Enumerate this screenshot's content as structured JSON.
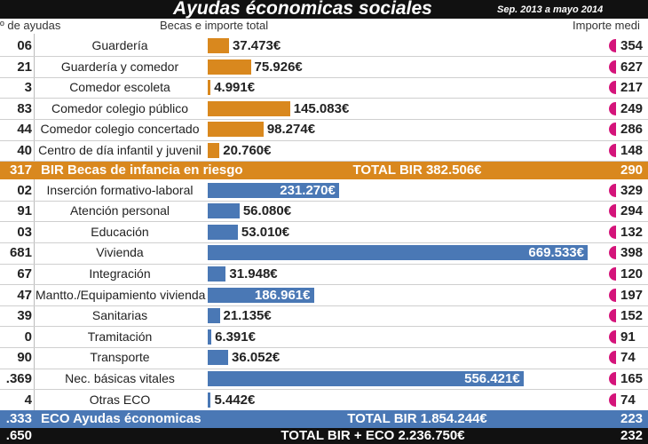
{
  "header": {
    "title": "Ayudas économicas sociales",
    "subtitle": "Sep. 2013 a mayo 2014",
    "col_count": "º de ayudas",
    "col_bar": "Becas e importe total",
    "col_avg": "Importe medi"
  },
  "groups": [
    {
      "color": "#d9881e",
      "rows": [
        {
          "count": "06",
          "label": "Guardería",
          "amount": 37473,
          "amount_label": "37.473€",
          "avg": "354"
        },
        {
          "count": "21",
          "label": "Guardería y comedor",
          "amount": 75926,
          "amount_label": "75.926€",
          "avg": "627"
        },
        {
          "count": "3",
          "label": "Comedor escoleta",
          "amount": 4991,
          "amount_label": "4.991€",
          "avg": "217"
        },
        {
          "count": "83",
          "label": "Comedor colegio público",
          "amount": 145083,
          "amount_label": "145.083€",
          "avg": "249"
        },
        {
          "count": "44",
          "label": "Comedor colegio concertado",
          "amount": 98274,
          "amount_label": "98.274€",
          "avg": "286"
        },
        {
          "count": "40",
          "label": "Centro de día infantil y juvenil",
          "amount": 20760,
          "amount_label": "20.760€",
          "avg": "148"
        }
      ],
      "summary": {
        "count": "317",
        "label": "BIR Becas de infancia en riesgo",
        "total": "TOTAL BIR 382.506€",
        "avg": "290"
      }
    },
    {
      "color": "#4a78b5",
      "rows": [
        {
          "count": "02",
          "label": "Inserción formativo-laboral",
          "amount": 231270,
          "amount_label": "231.270€",
          "avg": "329"
        },
        {
          "count": "91",
          "label": "Atención personal",
          "amount": 56080,
          "amount_label": "56.080€",
          "avg": "294"
        },
        {
          "count": "03",
          "label": "Educación",
          "amount": 53010,
          "amount_label": "53.010€",
          "avg": "132"
        },
        {
          "count": "681",
          "label": "Vivienda",
          "amount": 669533,
          "amount_label": "669.533€",
          "avg": "398"
        },
        {
          "count": "67",
          "label": "Integración",
          "amount": 31948,
          "amount_label": "31.948€",
          "avg": "120"
        },
        {
          "count": "47",
          "label": "Mantto./Equipamiento vivienda",
          "amount": 186961,
          "amount_label": "186.961€",
          "avg": "197"
        },
        {
          "count": "39",
          "label": "Sanitarias",
          "amount": 21135,
          "amount_label": "21.135€",
          "avg": "152"
        },
        {
          "count": "0",
          "label": "Tramitación",
          "amount": 6391,
          "amount_label": "6.391€",
          "avg": "91"
        },
        {
          "count": "90",
          "label": "Transporte",
          "amount": 36052,
          "amount_label": "36.052€",
          "avg": "74"
        },
        {
          "count": ".369",
          "label": "Nec. básicas vitales",
          "amount": 556421,
          "amount_label": "556.421€",
          "avg": "165"
        },
        {
          "count": "4",
          "label": "Otras ECO",
          "amount": 5442,
          "amount_label": "5.442€",
          "avg": "74"
        }
      ],
      "summary": {
        "count": ".333",
        "label": "ECO Ayudas économicas",
        "total": "TOTAL BIR 1.854.244€",
        "avg": "223"
      }
    }
  ],
  "grand_total": {
    "count": ".650",
    "total": "TOTAL BIR + ECO 2.236.750€",
    "avg": "232"
  }
}
